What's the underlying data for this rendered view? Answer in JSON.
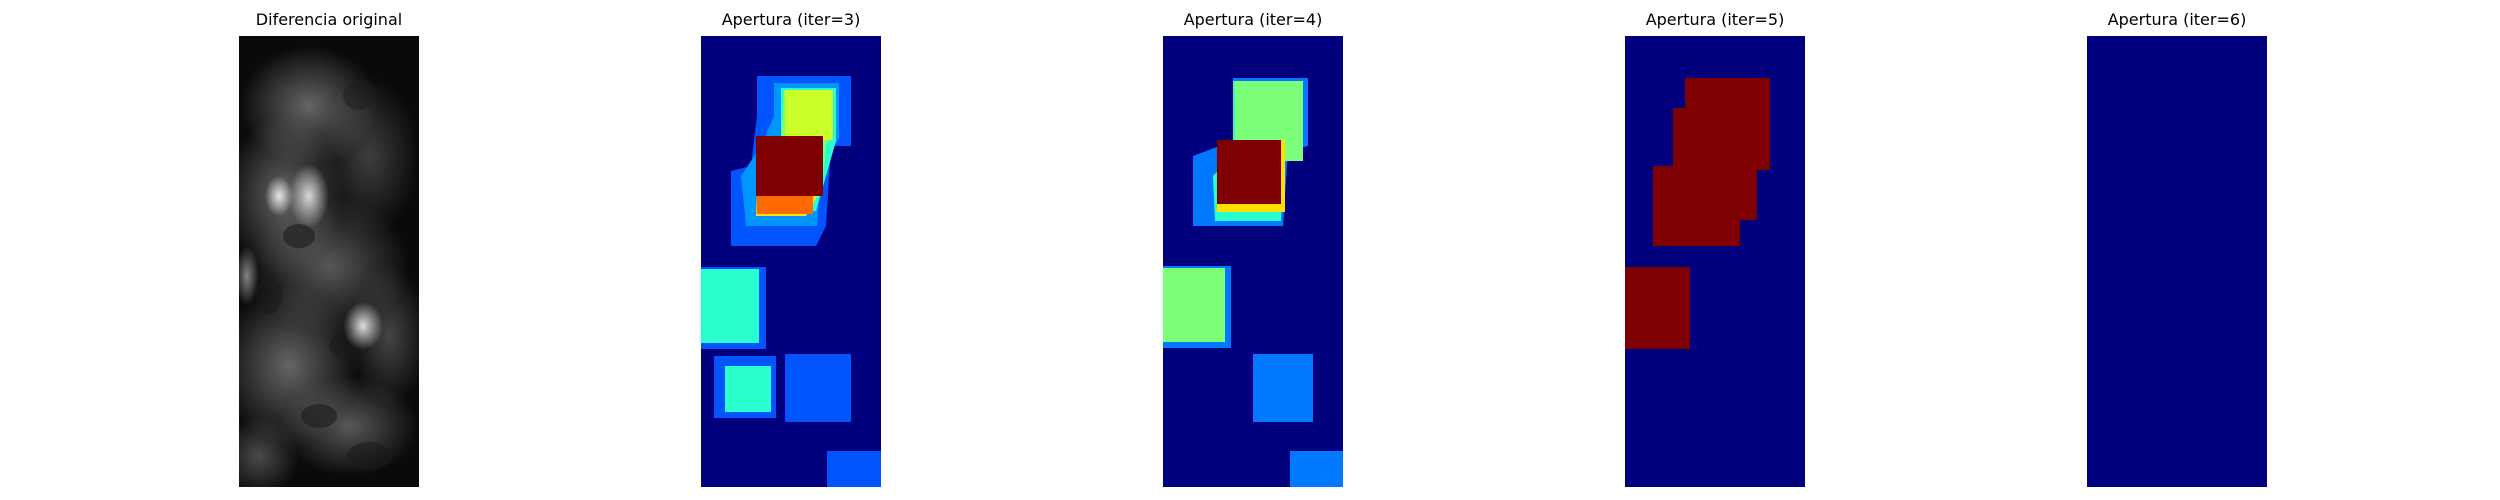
{
  "panels": [
    {
      "title": "Diferencia original",
      "kind": "grayscale"
    },
    {
      "title": "Apertura (iter=3)",
      "kind": "jet-iter3"
    },
    {
      "title": "Apertura (iter=4)",
      "kind": "jet-iter4"
    },
    {
      "title": "Apertura (iter=5)",
      "kind": "jet-iter5"
    },
    {
      "title": "Apertura (iter=6)",
      "kind": "jet-iter6"
    }
  ],
  "colors": {
    "jet_background": "#00007f",
    "dark_red": "#7f0000",
    "orange": "#ff6a00",
    "yellow": "#cbff2a",
    "light_green": "#7dff7a",
    "cyan_green": "#29ffce",
    "blue": "#0055ff",
    "mid_blue": "#0078ff"
  }
}
